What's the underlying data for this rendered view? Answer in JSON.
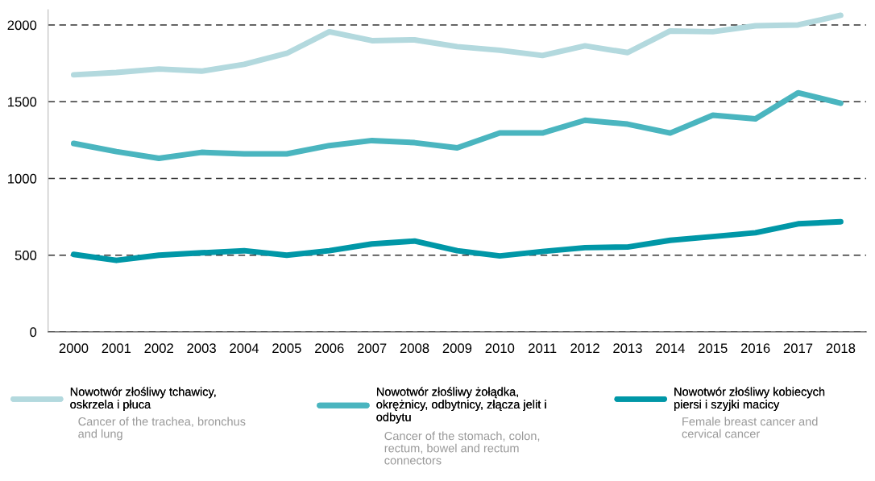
{
  "chart_data": {
    "type": "line",
    "categories": [
      "2000",
      "2001",
      "2002",
      "2003",
      "2004",
      "2005",
      "2006",
      "2007",
      "2008",
      "2009",
      "2010",
      "2011",
      "2012",
      "2013",
      "2014",
      "2015",
      "2016",
      "2017",
      "2018"
    ],
    "series": [
      {
        "name": "Nowotwór złośliwy tchawicy, oskrzela i płuca",
        "color": "#b3d9de",
        "values": [
          1675,
          1690,
          1713,
          1699,
          1743,
          1815,
          1956,
          1898,
          1903,
          1859,
          1835,
          1801,
          1864,
          1820,
          1961,
          1956,
          1995,
          2000,
          2063
        ]
      },
      {
        "name": "Nowotwór złośliwy żołądka, okrężnicy, odbytnicy, złącza jelit i odbytu",
        "color": "#4ab5bf",
        "values": [
          1228,
          1175,
          1131,
          1170,
          1160,
          1160,
          1214,
          1247,
          1233,
          1199,
          1296,
          1296,
          1379,
          1354,
          1296,
          1412,
          1388,
          1558,
          1490
        ]
      },
      {
        "name": "Nowotwór złośliwy kobiecych piersi i szyjki macicy",
        "color": "#0097a7",
        "values": [
          505,
          466,
          500,
          515,
          529,
          500,
          529,
          573,
          592,
          529,
          495,
          524,
          549,
          553,
          597,
          621,
          646,
          704,
          718
        ]
      }
    ],
    "annotations": [
      "Cancer of the trachea, bronchus and lung",
      "Cancer of the stomach, colon, rectum, bowel and rectum connectors",
      "Female breast cancer and cervical cancer"
    ],
    "ylim": [
      0,
      2100
    ],
    "yticks": [
      0,
      500,
      1000,
      1500,
      2000
    ],
    "grid": "y",
    "legend": "bottom",
    "line_style": "solid",
    "marker": "none"
  }
}
